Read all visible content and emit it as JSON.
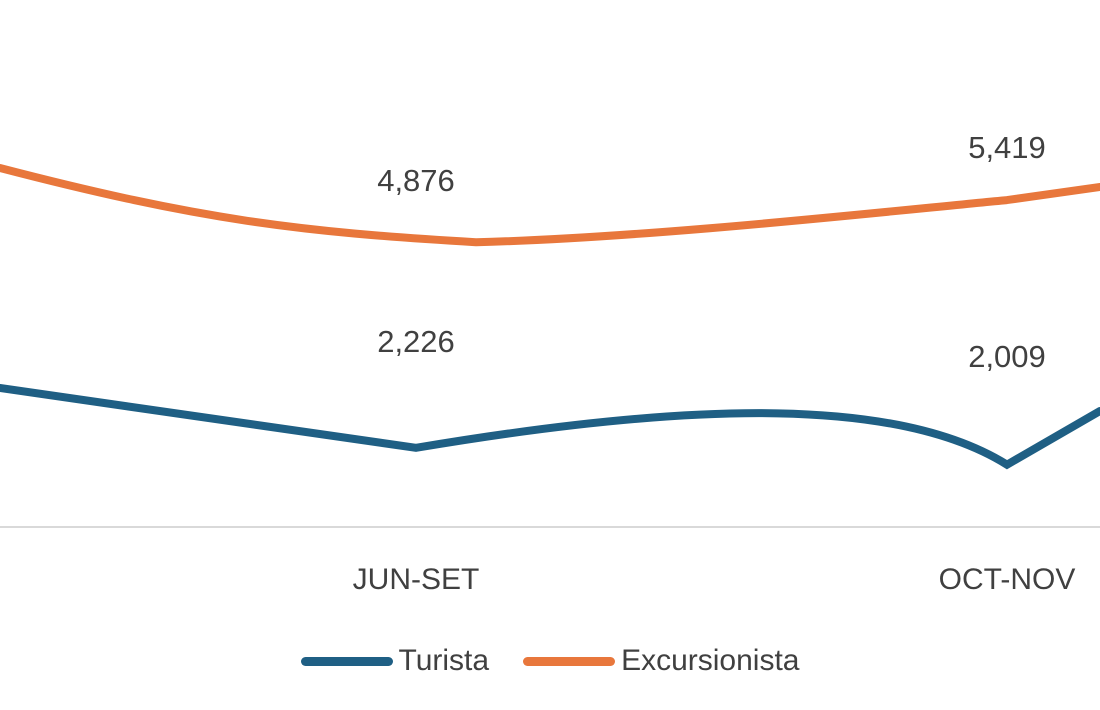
{
  "chart_data": {
    "type": "line",
    "categories": [
      "JUN-SET",
      "OCT-NOV"
    ],
    "series": [
      {
        "name": "Turista",
        "values": [
          2226,
          2009
        ],
        "labels": [
          "2,226",
          "2,009"
        ],
        "color": "#1f5f84"
      },
      {
        "name": "Excursionista",
        "values": [
          4876,
          5419
        ],
        "labels": [
          "4,876",
          "5,419"
        ],
        "color": "#e8773c"
      }
    ],
    "title": "",
    "xlabel": "",
    "ylabel": "",
    "grid": false,
    "legend_position": "bottom",
    "axis_color": "#d9d9d9"
  }
}
